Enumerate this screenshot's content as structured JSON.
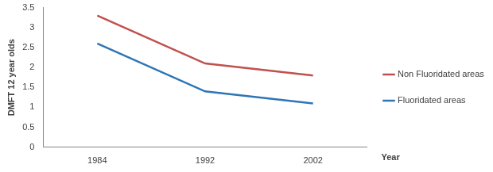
{
  "chart_data": {
    "type": "line",
    "categories": [
      "1984",
      "1992",
      "2002"
    ],
    "series": [
      {
        "name": "Non Fluoridated areas",
        "color": "#c0504d",
        "values": [
          3.3,
          2.1,
          1.8
        ]
      },
      {
        "name": "Fluoridated areas",
        "color": "#2e75b6",
        "values": [
          2.6,
          1.4,
          1.1
        ]
      }
    ],
    "ylabel": "DMFT 12 year olds",
    "xlabel": "Year",
    "ylim": [
      0,
      3.5
    ],
    "yticks": [
      0,
      0.5,
      1,
      1.5,
      2,
      2.5,
      3,
      3.5
    ],
    "grid": false,
    "legend": "right"
  }
}
